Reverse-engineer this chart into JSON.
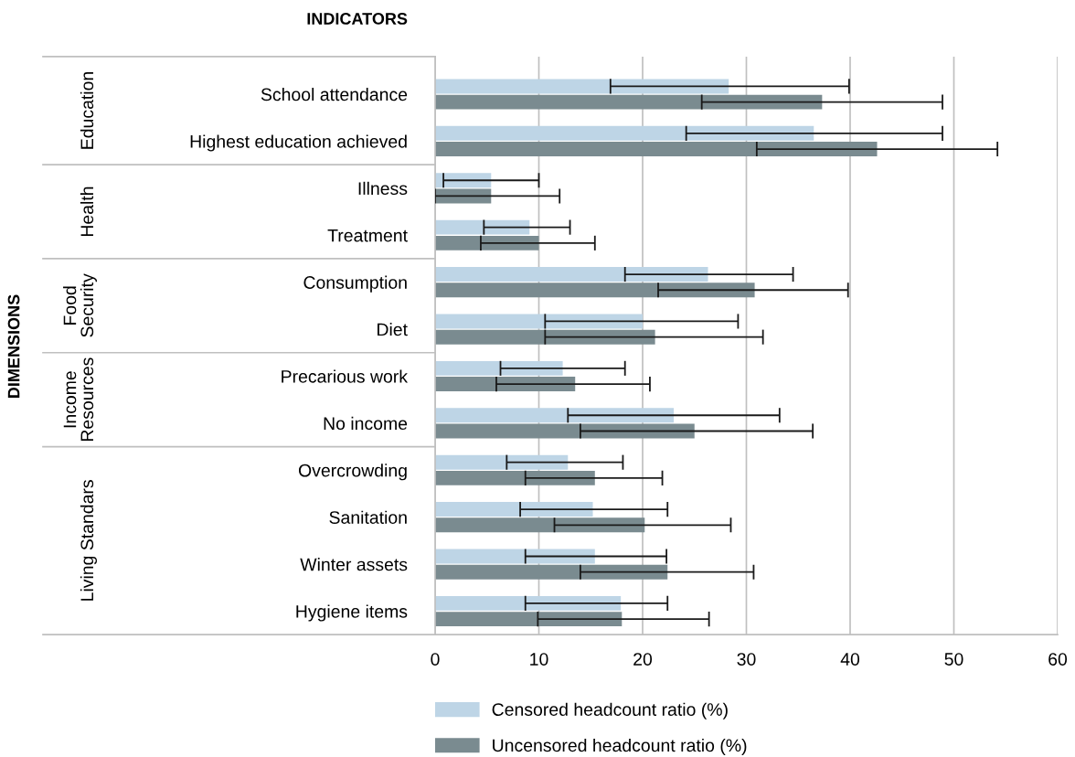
{
  "chart_data": {
    "type": "bar",
    "orientation": "horizontal",
    "annotations": [
      "INDICATORS",
      "DIMENSIONS",
      "Education",
      "Health",
      "Food\nSecurity",
      "Income\nResources",
      "Living Standars"
    ],
    "categories": [
      "School attendance",
      "Highest education achieved",
      "Illness",
      "Treatment",
      "Consumption",
      "Diet",
      "Precarious work",
      "No income",
      "Overcrowding",
      "Sanitation",
      "Winter assets",
      "Hygiene items"
    ],
    "series": [
      {
        "name": "Censored headcount ratio (%)",
        "color": "#bed5e6",
        "values": [
          28.3,
          36.5,
          5.4,
          9.1,
          26.3,
          20.0,
          12.3,
          23.0,
          12.8,
          15.2,
          15.4,
          17.9
        ],
        "errors": [
          [
            16.9,
            39.9
          ],
          [
            24.2,
            48.9
          ],
          [
            0.8,
            10.0
          ],
          [
            4.7,
            13.0
          ],
          [
            18.3,
            34.5
          ],
          [
            10.6,
            29.2
          ],
          [
            6.3,
            18.3
          ],
          [
            12.8,
            33.2
          ],
          [
            6.9,
            18.1
          ],
          [
            8.2,
            22.4
          ],
          [
            8.7,
            22.3
          ],
          [
            8.7,
            22.4
          ]
        ]
      },
      {
        "name": "Uncensored headcount ratio (%)",
        "color": "#7a8b90",
        "values": [
          37.3,
          42.6,
          5.4,
          10.0,
          30.8,
          21.2,
          13.5,
          25.0,
          15.4,
          20.2,
          22.4,
          18.0
        ],
        "errors": [
          [
            25.7,
            48.9
          ],
          [
            31.0,
            54.2
          ],
          [
            0.0,
            12.0
          ],
          [
            4.4,
            15.4
          ],
          [
            21.5,
            39.8
          ],
          [
            10.6,
            31.6
          ],
          [
            5.9,
            20.7
          ],
          [
            14.0,
            36.4
          ],
          [
            8.7,
            21.9
          ],
          [
            11.5,
            28.5
          ],
          [
            14.0,
            30.7
          ],
          [
            9.9,
            26.4
          ]
        ]
      }
    ],
    "xlim": [
      0,
      60
    ],
    "xticks": [
      0,
      10,
      20,
      30,
      40,
      50,
      60
    ],
    "grid": "x",
    "legend": "bottom"
  }
}
